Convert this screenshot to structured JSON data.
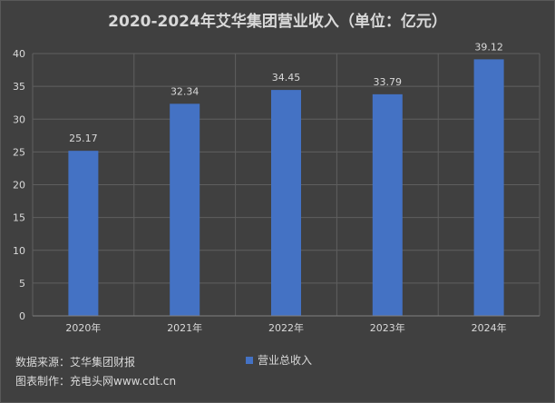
{
  "chart_data": {
    "type": "bar",
    "title": "2020-2024年艾华集团营业收入（单位：亿元）",
    "categories": [
      "2020年",
      "2021年",
      "2022年",
      "2023年",
      "2024年"
    ],
    "series": [
      {
        "name": "营业总收入",
        "values": [
          25.17,
          32.34,
          34.45,
          33.79,
          39.12
        ]
      }
    ],
    "data_labels": [
      "25.17",
      "32.34",
      "34.45",
      "33.79",
      "39.12"
    ],
    "ylim": [
      0,
      40
    ],
    "yticks": [
      0,
      5,
      10,
      15,
      20,
      25,
      30,
      35,
      40
    ],
    "grid": true,
    "legend_position": "bottom",
    "bar_color": "#4472c4"
  },
  "footer": {
    "source": "数据来源：艾华集团财报",
    "credit": "图表制作：充电头网www.cdt.cn"
  }
}
